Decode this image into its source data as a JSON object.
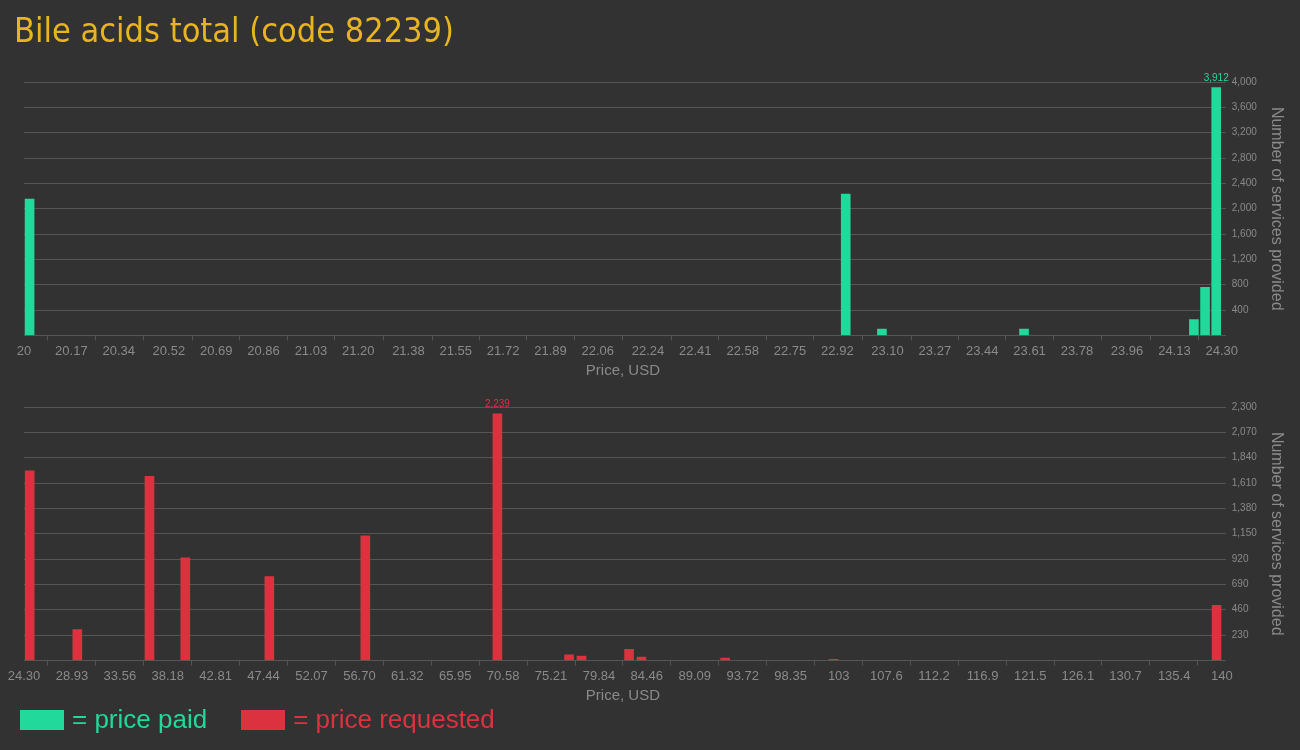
{
  "chart_data": [
    {
      "type": "bar",
      "title": "Bile acids total (code 82239)",
      "xlabel": "Price, USD",
      "ylabel": "Number of services provided",
      "xlim": [
        20,
        24.3
      ],
      "xticks": [
        20,
        20.17,
        20.34,
        20.52,
        20.69,
        20.86,
        21.03,
        {
          "value": 21.2,
          "label": "21.20"
        },
        21.38,
        21.55,
        21.72,
        21.89,
        22.06,
        22.24,
        22.41,
        22.58,
        22.75,
        22.92,
        {
          "value": 23.1,
          "label": "23.10"
        },
        23.27,
        23.44,
        23.61,
        23.78,
        23.96,
        24.13,
        {
          "value": 24.3,
          "label": "24.30"
        }
      ],
      "ylim": [
        0,
        4000
      ],
      "yticks": [
        {
          "value": 0,
          "label": null
        },
        400,
        800,
        {
          "value": 1200,
          "label": "1,200"
        },
        {
          "value": 1600,
          "label": "1,600"
        },
        {
          "value": 2000,
          "label": "2,000"
        },
        {
          "value": 2400,
          "label": "2,400"
        },
        {
          "value": 2800,
          "label": "2,800"
        },
        {
          "value": 3200,
          "label": "3,200"
        },
        {
          "value": 3600,
          "label": "3,600"
        },
        {
          "value": 4000,
          "label": "4,000"
        }
      ],
      "grid": "y",
      "legend": "bottom left",
      "series": [
        {
          "name": "= price paid",
          "color": "#20d99a",
          "x": [
            20.02,
            22.95,
            23.08,
            23.59,
            24.2,
            24.24,
            24.28
          ],
          "values": [
            2150,
            2230,
            100,
            100,
            250,
            760,
            3912
          ],
          "value_labels": [
            null,
            null,
            null,
            null,
            null,
            null,
            "3,912"
          ]
        }
      ]
    },
    {
      "type": "bar",
      "xlabel": "Price, USD",
      "ylabel": "Number of services provided",
      "xlim": [
        24.3,
        140
      ],
      "xticks": [
        {
          "value": 24.3,
          "label": "24.30"
        },
        28.93,
        33.56,
        38.18,
        42.81,
        47.44,
        52.07,
        {
          "value": 56.7,
          "label": "56.70"
        },
        61.32,
        65.95,
        70.58,
        75.21,
        79.84,
        84.46,
        89.09,
        93.72,
        98.35,
        103,
        107.6,
        112.2,
        116.9,
        121.5,
        126.1,
        130.7,
        135.4,
        140
      ],
      "ylim": [
        0,
        2300
      ],
      "yticks": [
        {
          "value": 0,
          "label": null
        },
        230,
        460,
        690,
        920,
        {
          "value": 1150,
          "label": "1,150"
        },
        {
          "value": 1380,
          "label": "1,380"
        },
        {
          "value": 1610,
          "label": "1,610"
        },
        {
          "value": 1840,
          "label": "1,840"
        },
        {
          "value": 2070,
          "label": "2,070"
        },
        {
          "value": 2300,
          "label": "2,300"
        }
      ],
      "grid": "y",
      "legend": "bottom left",
      "series": [
        {
          "name": "= price requested",
          "color": "#dc3240",
          "x": [
            24.85,
            29.45,
            36.42,
            39.88,
            48.0,
            57.27,
            70.03,
            76.95,
            78.15,
            82.75,
            83.94,
            92.03,
            102.5,
            139.5
          ],
          "values": [
            1720,
            280,
            1670,
            930,
            760,
            1130,
            2239,
            50,
            40,
            100,
            30,
            20,
            10,
            500
          ],
          "value_labels": [
            null,
            null,
            null,
            null,
            null,
            null,
            "2,239",
            null,
            null,
            null,
            null,
            null,
            null,
            null
          ]
        }
      ]
    }
  ]
}
